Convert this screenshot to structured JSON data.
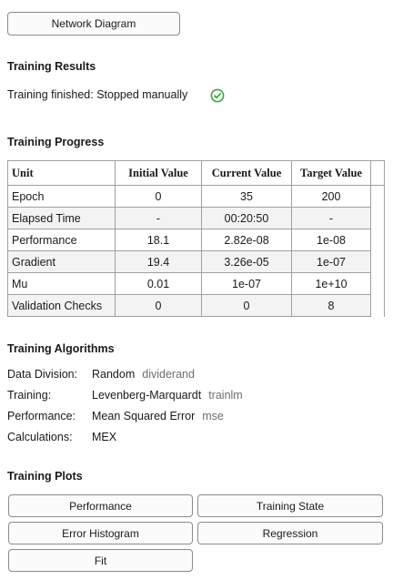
{
  "top_button": {
    "label": "Network Diagram"
  },
  "results": {
    "title": "Training Results",
    "status_text": "Training finished: Stopped manually",
    "status_icon": "check-circle-icon",
    "status_color": "#35a835"
  },
  "progress": {
    "title": "Training Progress",
    "columns": [
      "Unit",
      "Initial Value",
      "Current Value",
      "Target Value"
    ],
    "rows": [
      {
        "unit": "Epoch",
        "initial": "0",
        "current": "35",
        "target": "200"
      },
      {
        "unit": "Elapsed Time",
        "initial": "-",
        "current": "00:20:50",
        "target": "-"
      },
      {
        "unit": "Performance",
        "initial": "18.1",
        "current": "2.82e-08",
        "target": "1e-08"
      },
      {
        "unit": "Gradient",
        "initial": "19.4",
        "current": "3.26e-05",
        "target": "1e-07"
      },
      {
        "unit": "Mu",
        "initial": "0.01",
        "current": "1e-07",
        "target": "1e+10"
      },
      {
        "unit": "Validation Checks",
        "initial": "0",
        "current": "0",
        "target": "8"
      }
    ]
  },
  "algorithms": {
    "title": "Training Algorithms",
    "items": [
      {
        "key": "Data Division:",
        "value": "Random",
        "fn": "dividerand"
      },
      {
        "key": "Training:",
        "value": "Levenberg-Marquardt",
        "fn": "trainlm"
      },
      {
        "key": "Performance:",
        "value": "Mean Squared Error",
        "fn": "mse"
      },
      {
        "key": "Calculations:",
        "value": "MEX",
        "fn": ""
      }
    ]
  },
  "plots": {
    "title": "Training Plots",
    "buttons": {
      "performance": "Performance",
      "training_state": "Training State",
      "error_histogram": "Error Histogram",
      "regression": "Regression",
      "fit": "Fit"
    }
  }
}
